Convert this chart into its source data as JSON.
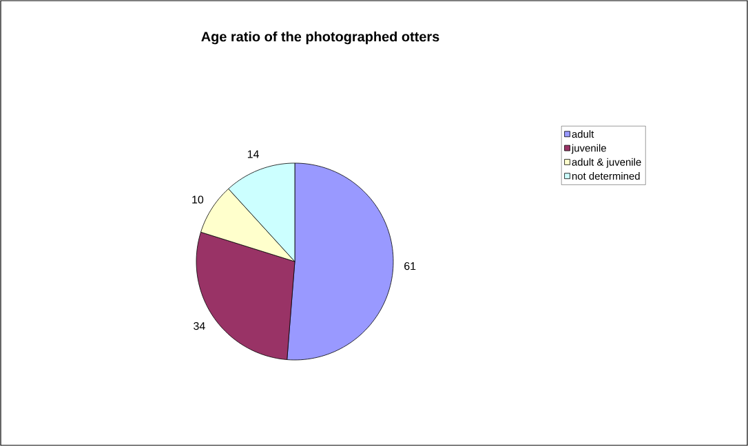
{
  "chart_data": {
    "type": "pie",
    "title": "Age ratio of the photographed otters",
    "categories": [
      "adult",
      "juvenile",
      "adult & juvenile",
      "not determined"
    ],
    "values": [
      61,
      34,
      10,
      14
    ],
    "colors": [
      "#9999ff",
      "#993366",
      "#ffffcc",
      "#ccffff"
    ],
    "legend": "right",
    "data_labels": true
  }
}
